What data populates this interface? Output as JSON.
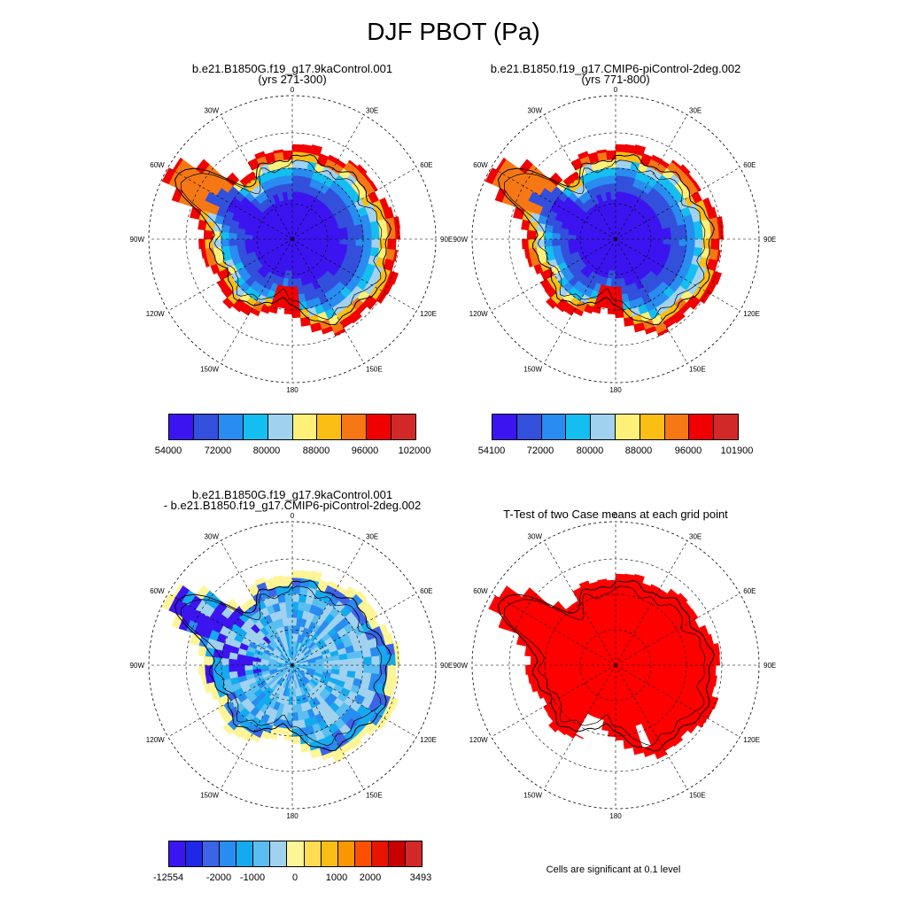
{
  "main_title": "DJF PBOT (Pa)",
  "panels": [
    {
      "title1": "b.e21.B1850G.f19_g17.9kaControl.001",
      "title2": "(yrs 271-300)"
    },
    {
      "title1": "b.e21.B1850.f19_g17.CMIP6-piControl-2deg.002",
      "title2": "(yrs 771-800)"
    },
    {
      "title1": "b.e21.B1850G.f19_g17.9kaControl.001",
      "title2": "- b.e21.B1850.f19_g17.CMIP6-piControl-2deg.002"
    },
    {
      "title1": "T-Test of two Case means at each grid point",
      "title2": ""
    }
  ],
  "lon_labels": {
    "top": "0",
    "tr": "30E",
    "rt": "60E",
    "right": "90E",
    "rb": "120E",
    "br": "150E",
    "bottom": "180",
    "bl": "150W",
    "lb": "120W",
    "left": "90W",
    "lt": "60W",
    "tl": "30W"
  },
  "colorbars": [
    {
      "colors": [
        "#3c14f0",
        "#3250dc",
        "#288cf0",
        "#14bef0",
        "#a0d2f0",
        "#fff07a",
        "#fbbe14",
        "#f57814",
        "#f00000",
        "#d22828"
      ],
      "labels": [
        "54000",
        "72000",
        "80000",
        "88000",
        "96000",
        "102000"
      ]
    },
    {
      "colors": [
        "#3c14f0",
        "#3250dc",
        "#288cf0",
        "#14bef0",
        "#a0d2f0",
        "#fff07a",
        "#fbbe14",
        "#f57814",
        "#f00000",
        "#d22828"
      ],
      "labels": [
        "54100",
        "72000",
        "80000",
        "88000",
        "96000",
        "101900"
      ]
    },
    {
      "colors": [
        "#3c14f0",
        "#1e28e6",
        "#3c64e6",
        "#288cf0",
        "#14aaf0",
        "#5abef0",
        "#a0d2f0",
        "#fff596",
        "#ffdc50",
        "#fbbe14",
        "#fa9600",
        "#fa5000",
        "#e61400",
        "#c80000",
        "#d22828"
      ],
      "labels": [
        "-12554",
        "-2000",
        "-1000",
        "0",
        "1000",
        "2000",
        "3493"
      ]
    }
  ],
  "sig_note": "Cells are significant at 0.1 level",
  "colors": {
    "sig": "#ff0000",
    "ice_core": "#3c14f0"
  }
}
